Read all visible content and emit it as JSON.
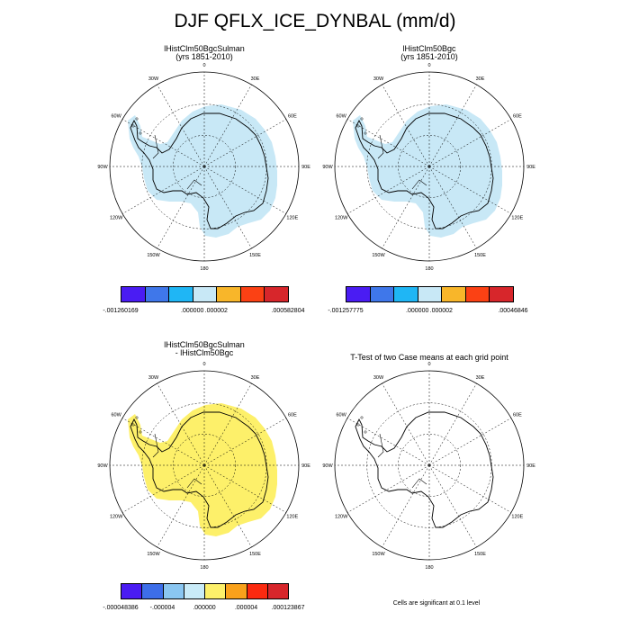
{
  "title": "DJF QFLX_ICE_DYNBAL (mm/d)",
  "lon_labels": [
    "0",
    "30E",
    "60E",
    "90E",
    "120E",
    "150E",
    "180",
    "150W",
    "120W",
    "90W",
    "60W",
    "30W"
  ],
  "colors": {
    "ice_light": "#c8e8f6",
    "diff_yellow": "#fdf06a",
    "coast": "#000000",
    "grid": "#000000"
  },
  "panels": [
    {
      "id": "top-left",
      "title_lines": [
        "lHistClm50BgcSulman",
        "(yrs 1851-2010)"
      ],
      "fill": "ice_light",
      "colorbar": {
        "colors": [
          "#4a1cf3",
          "#3f77ea",
          "#1fb6f5",
          "#c8e8f6",
          "#f8b62a",
          "#fb4114",
          "#d7262b"
        ],
        "labels": [
          "-.001260169",
          ".000000",
          ".000002",
          ".000582804"
        ]
      }
    },
    {
      "id": "top-right",
      "title_lines": [
        "lHistClm50Bgc",
        "(yrs 1851-2010)"
      ],
      "fill": "ice_light",
      "colorbar": {
        "colors": [
          "#4a1cf3",
          "#3f77ea",
          "#1fb6f5",
          "#c8e8f6",
          "#f8b62a",
          "#fb4114",
          "#d7262b"
        ],
        "labels": [
          "-.001257775",
          ".000000",
          ".000002",
          ".00046846"
        ]
      }
    },
    {
      "id": "bottom-left",
      "title_lines": [
        "lHistClm50BgcSulman",
        "- lHistClm50Bgc"
      ],
      "fill": "diff_yellow",
      "colorbar": {
        "colors": [
          "#4a1cf3",
          "#3d6ee9",
          "#8ac6f1",
          "#c9ebf8",
          "#fdf06a",
          "#f9a11b",
          "#fb2a0f",
          "#d7262b"
        ],
        "labels": [
          "-.000048386",
          "-.000004",
          ".000000",
          ".000004",
          ".000123867"
        ]
      }
    },
    {
      "id": "bottom-right",
      "title_lines": [
        "T-Test of two Case means at each grid point"
      ],
      "fill": "none",
      "colorbar": null
    }
  ],
  "note": "Cells are significant at 0.1 level"
}
